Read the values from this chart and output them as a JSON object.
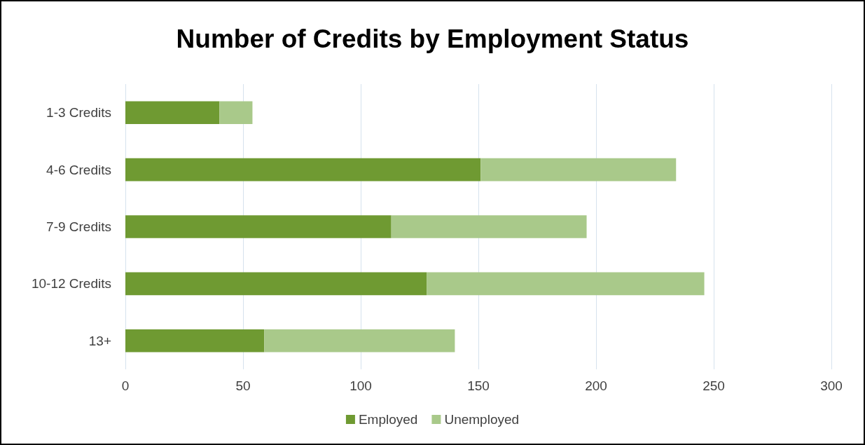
{
  "chart_data": {
    "type": "bar",
    "title": "Number of Credits by Employment Status",
    "orientation": "horizontal",
    "stacked": true,
    "categories": [
      "1-3 Credits",
      "4-6 Credits",
      "7-9 Credits",
      "10-12 Credits",
      "13+"
    ],
    "series": [
      {
        "name": "Employed",
        "color": "#6f9a32",
        "values": [
          40,
          151,
          113,
          128,
          59
        ]
      },
      {
        "name": "Unemployed",
        "color": "#a9c98a",
        "values": [
          14,
          83,
          83,
          118,
          81
        ]
      }
    ],
    "xlim": [
      0,
      300
    ],
    "xticks": [
      0,
      50,
      100,
      150,
      200,
      250,
      300
    ],
    "grid": "x",
    "legend": "bottom"
  }
}
